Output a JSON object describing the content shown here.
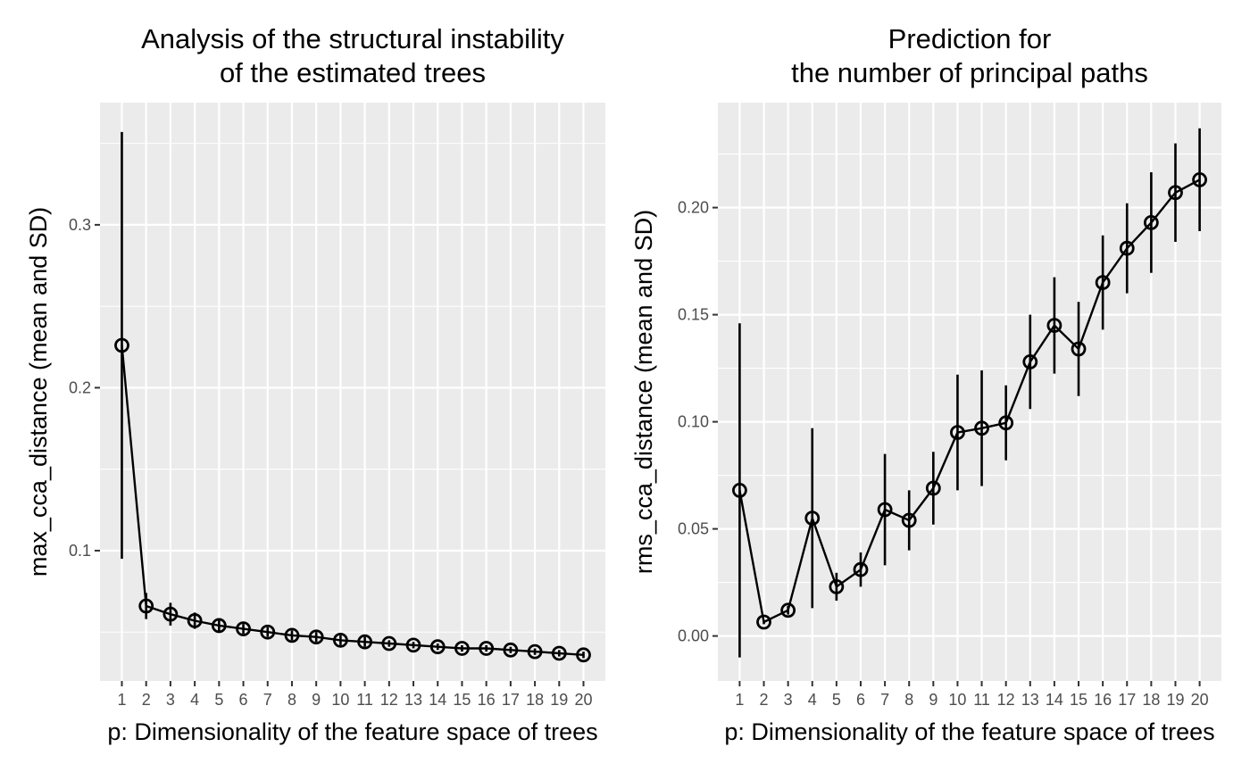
{
  "chart_data": [
    {
      "type": "line",
      "error_bars": "SD",
      "title": "Analysis of the structural instability\nof the estimated trees",
      "xlabel": "p: Dimensionality of the feature space of trees",
      "ylabel": "max_cca_distance (mean and SD)",
      "x": [
        1,
        2,
        3,
        4,
        5,
        6,
        7,
        8,
        9,
        10,
        11,
        12,
        13,
        14,
        15,
        16,
        17,
        18,
        19,
        20
      ],
      "x_ticks": [
        "1",
        "2",
        "3",
        "4",
        "5",
        "6",
        "7",
        "8",
        "9",
        "10",
        "11",
        "12",
        "13",
        "14",
        "15",
        "16",
        "17",
        "18",
        "19",
        "20"
      ],
      "xlim": [
        0.1,
        20.9
      ],
      "ylim": [
        0.02,
        0.375
      ],
      "y_ticks": [
        0.1,
        0.2,
        0.3
      ],
      "y_tick_labels": [
        "0.1",
        "0.2",
        "0.3"
      ],
      "grid": true,
      "series": [
        {
          "mean": [
            0.226,
            0.066,
            0.061,
            0.057,
            0.054,
            0.052,
            0.05,
            0.048,
            0.047,
            0.045,
            0.044,
            0.043,
            0.042,
            0.041,
            0.04,
            0.04,
            0.039,
            0.038,
            0.037,
            0.036
          ],
          "sd": [
            0.131,
            0.008,
            0.007,
            0.005,
            0.004,
            0.003,
            0.003,
            0.003,
            0.003,
            0.003,
            0.003,
            0.002,
            0.002,
            0.002,
            0.002,
            0.002,
            0.002,
            0.002,
            0.002,
            0.002
          ]
        }
      ]
    },
    {
      "type": "line",
      "error_bars": "SD",
      "title": "Prediction for\nthe number of principal paths",
      "xlabel": "p: Dimensionality of the feature space of trees",
      "ylabel": "rms_cca_distance (mean and SD)",
      "x": [
        1,
        2,
        3,
        4,
        5,
        6,
        7,
        8,
        9,
        10,
        11,
        12,
        13,
        14,
        15,
        16,
        17,
        18,
        19,
        20
      ],
      "x_ticks": [
        "1",
        "2",
        "3",
        "4",
        "5",
        "6",
        "7",
        "8",
        "9",
        "10",
        "11",
        "12",
        "13",
        "14",
        "15",
        "16",
        "17",
        "18",
        "19",
        "20"
      ],
      "xlim": [
        0.1,
        20.9
      ],
      "ylim": [
        -0.021,
        0.249
      ],
      "y_ticks": [
        0.0,
        0.05,
        0.1,
        0.15,
        0.2
      ],
      "y_tick_labels": [
        "0.00",
        "0.05",
        "0.10",
        "0.15",
        "0.20"
      ],
      "grid": true,
      "series": [
        {
          "mean": [
            0.068,
            0.0065,
            0.012,
            0.055,
            0.023,
            0.031,
            0.059,
            0.054,
            0.069,
            0.095,
            0.097,
            0.0995,
            0.128,
            0.145,
            0.134,
            0.165,
            0.181,
            0.193,
            0.207,
            0.213
          ],
          "sd": [
            0.078,
            0.001,
            0.002,
            0.042,
            0.0065,
            0.008,
            0.026,
            0.014,
            0.017,
            0.027,
            0.027,
            0.0175,
            0.022,
            0.0225,
            0.022,
            0.022,
            0.021,
            0.0235,
            0.023,
            0.024
          ]
        }
      ]
    }
  ]
}
